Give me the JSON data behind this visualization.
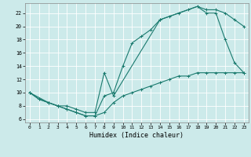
{
  "title": "",
  "xlabel": "Humidex (Indice chaleur)",
  "bg_color": "#cceaea",
  "line_color": "#1a7a6e",
  "grid_color": "#ffffff",
  "xlim": [
    -0.5,
    23.5
  ],
  "ylim": [
    5.5,
    23.5
  ],
  "yticks": [
    6,
    8,
    10,
    12,
    14,
    16,
    18,
    20,
    22
  ],
  "xticks": [
    0,
    1,
    2,
    3,
    4,
    5,
    6,
    7,
    8,
    9,
    10,
    11,
    12,
    13,
    14,
    15,
    16,
    17,
    18,
    19,
    20,
    21,
    22,
    23
  ],
  "curve1_x": [
    0,
    1,
    2,
    3,
    4,
    5,
    6,
    7,
    8,
    9,
    10,
    11,
    12,
    13,
    14,
    15,
    16,
    17,
    18,
    19,
    20,
    21,
    22,
    23
  ],
  "curve1_y": [
    10,
    9,
    8.5,
    8,
    7.5,
    7,
    6.5,
    6.5,
    9.5,
    10,
    14,
    17.5,
    18.5,
    19.5,
    21,
    21.5,
    22,
    22.5,
    23,
    22.5,
    22.5,
    22,
    21,
    20
  ],
  "curve2_x": [
    0,
    1,
    2,
    3,
    4,
    5,
    6,
    7,
    8,
    9,
    10,
    11,
    12,
    13,
    14,
    15,
    16,
    17,
    18,
    19,
    20,
    21,
    22,
    23
  ],
  "curve2_y": [
    10,
    9,
    8.5,
    8,
    7.5,
    7,
    6.5,
    6.5,
    7,
    8.5,
    9.5,
    10,
    10.5,
    11,
    11.5,
    12,
    12.5,
    12.5,
    13,
    13,
    13,
    13,
    13,
    13
  ],
  "curve3_x": [
    0,
    2,
    3,
    4,
    5,
    6,
    7,
    8,
    9,
    14,
    18,
    19,
    20,
    21,
    22,
    23
  ],
  "curve3_y": [
    10,
    8.5,
    8,
    8,
    7.5,
    7,
    7,
    13,
    9.5,
    21,
    23,
    22,
    22,
    18,
    14.5,
    13
  ]
}
